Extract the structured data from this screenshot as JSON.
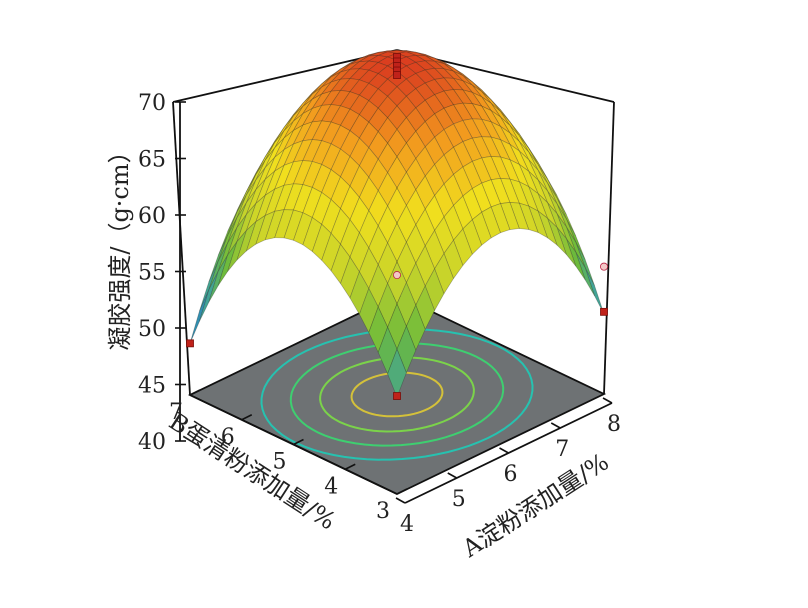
{
  "chart_data": {
    "type": "surface3d",
    "z_axis": {
      "label": "凝胶强度/（g·cm）",
      "range": [
        40,
        70
      ],
      "ticks": [
        "40",
        "45",
        "50",
        "55",
        "60",
        "65",
        "70"
      ]
    },
    "x_axis": {
      "label": "A淀粉添加量/%",
      "range": [
        4,
        8
      ],
      "ticks": [
        "4",
        "5",
        "6",
        "7",
        "8"
      ]
    },
    "y_axis": {
      "label": "B蛋清粉添加量/%",
      "range": [
        3,
        7
      ],
      "ticks": [
        "3",
        "4",
        "5",
        "6",
        "7"
      ]
    },
    "surface": {
      "model": "quadratic",
      "peak": {
        "A": 6,
        "B": 5,
        "value": 65.5
      },
      "corner_values": {
        "A4_B3": 44.5,
        "A8_B3": 43.0,
        "A4_B7": 40.5,
        "A8_B7": 47.0
      }
    },
    "design_points": [
      {
        "A": 6,
        "B": 5,
        "value": 65.8
      },
      {
        "A": 6,
        "B": 5,
        "value": 65.4
      },
      {
        "A": 6,
        "B": 5,
        "value": 65.0
      },
      {
        "A": 6,
        "B": 5,
        "value": 64.6
      },
      {
        "A": 6,
        "B": 5,
        "value": 64.2
      },
      {
        "A": 4,
        "B": 7,
        "value": 40.5
      },
      {
        "A": 8,
        "B": 3,
        "value": 43.2
      },
      {
        "A": 4,
        "B": 3,
        "value": 44.6
      }
    ],
    "colormap": [
      "#1f6fc0",
      "#3aa0a8",
      "#6cba3c",
      "#c8d42a",
      "#f1df1e",
      "#f29a1e",
      "#d7301f"
    ],
    "floor_color": "#6e7274",
    "contour_levels": [
      45,
      50,
      55,
      60
    ],
    "contour_colors": [
      "#26c2b0",
      "#3ecf70",
      "#7bd34a",
      "#d4c13a"
    ]
  }
}
